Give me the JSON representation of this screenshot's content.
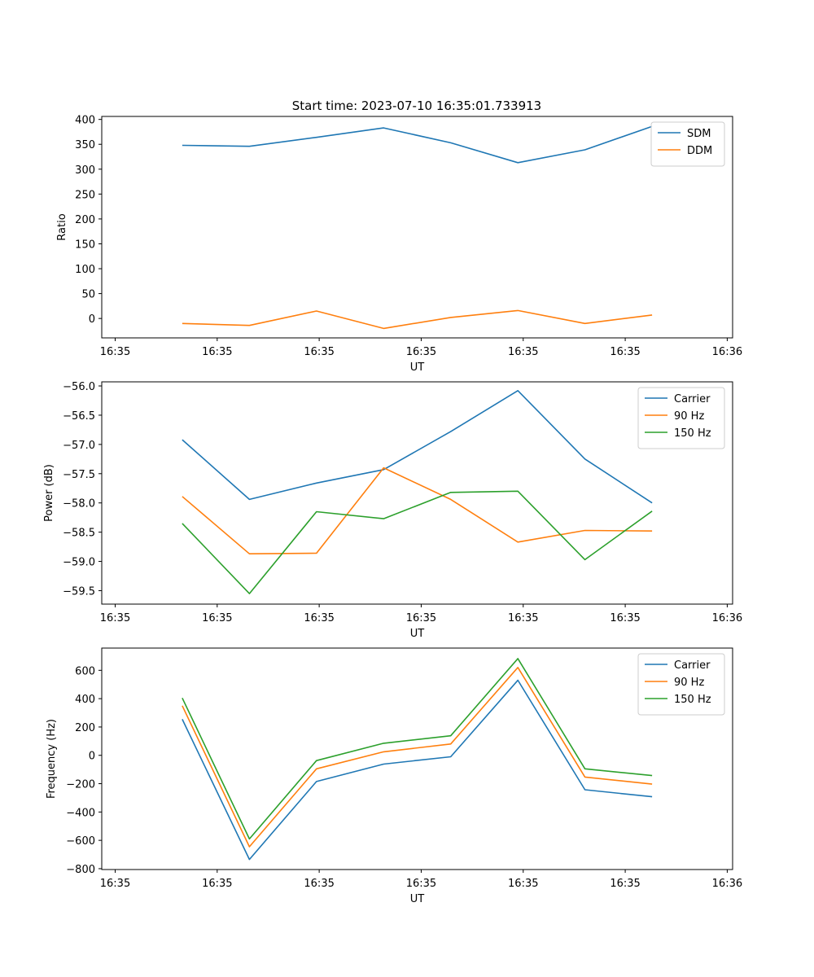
{
  "figure_title": "Start time: 2023-07-10 16:35:01.733913",
  "colors": {
    "blue": "#1f77b4",
    "orange": "#ff7f0e",
    "green": "#2ca02c"
  },
  "chart_data": [
    {
      "type": "line",
      "title": "Start time: 2023-07-10 16:35:01.733913",
      "xlabel": "UT",
      "ylabel": "Ratio",
      "x": [
        0.5,
        1.0,
        1.5,
        2.0,
        2.5,
        3.0,
        3.5,
        4.0
      ],
      "xlim": [
        -0.1,
        4.6
      ],
      "xticks": [
        0.0,
        0.76,
        1.52,
        2.28,
        3.04,
        3.8,
        4.56
      ],
      "xtick_labels": [
        "16:35",
        "16:35",
        "16:35",
        "16:35",
        "16:35",
        "16:35",
        "16:36"
      ],
      "ylim": [
        -39,
        406
      ],
      "yticks": [
        0,
        50,
        100,
        150,
        200,
        250,
        300,
        350,
        400
      ],
      "ytick_labels": [
        "0",
        "50",
        "100",
        "150",
        "200",
        "250",
        "300",
        "350",
        "400"
      ],
      "legend_position": "top-right",
      "series": [
        {
          "name": "SDM",
          "color": "#1f77b4",
          "values": [
            348,
            346,
            364,
            383,
            353,
            313,
            339,
            386
          ]
        },
        {
          "name": "DDM",
          "color": "#ff7f0e",
          "values": [
            -10,
            -14,
            15,
            -20,
            2,
            16,
            -10,
            7
          ]
        }
      ]
    },
    {
      "type": "line",
      "title": "",
      "xlabel": "UT",
      "ylabel": "Power (dB)",
      "x": [
        0.5,
        1.0,
        1.5,
        2.0,
        2.5,
        3.0,
        3.5,
        4.0
      ],
      "xlim": [
        -0.1,
        4.6
      ],
      "xticks": [
        0.0,
        0.76,
        1.52,
        2.28,
        3.04,
        3.8,
        4.56
      ],
      "xtick_labels": [
        "16:35",
        "16:35",
        "16:35",
        "16:35",
        "16:35",
        "16:35",
        "16:36"
      ],
      "ylim": [
        -59.73,
        -55.93
      ],
      "yticks": [
        -59.5,
        -59.0,
        -58.5,
        -58.0,
        -57.5,
        -57.0,
        -56.5,
        -56.0
      ],
      "ytick_labels": [
        "−59.5",
        "−59.0",
        "−58.5",
        "−58.0",
        "−57.5",
        "−57.0",
        "−56.5",
        "−56.0"
      ],
      "legend_position": "top-right",
      "series": [
        {
          "name": "Carrier",
          "color": "#1f77b4",
          "values": [
            -56.92,
            -57.94,
            -57.66,
            -57.43,
            -56.78,
            -56.08,
            -57.25,
            -58.0
          ]
        },
        {
          "name": "90 Hz",
          "color": "#ff7f0e",
          "values": [
            -57.89,
            -58.87,
            -58.86,
            -57.4,
            -57.94,
            -58.67,
            -58.47,
            -58.48
          ]
        },
        {
          "name": "150 Hz",
          "color": "#2ca02c",
          "values": [
            -58.35,
            -59.55,
            -58.15,
            -58.27,
            -57.82,
            -57.8,
            -58.97,
            -58.14
          ]
        }
      ]
    },
    {
      "type": "line",
      "title": "",
      "xlabel": "UT",
      "ylabel": "Frequency (Hz)",
      "x": [
        0.5,
        1.0,
        1.5,
        2.0,
        2.5,
        3.0,
        3.5,
        4.0
      ],
      "xlim": [
        -0.1,
        4.6
      ],
      "xticks": [
        0.0,
        0.76,
        1.52,
        2.28,
        3.04,
        3.8,
        4.56
      ],
      "xtick_labels": [
        "16:35",
        "16:35",
        "16:35",
        "16:35",
        "16:35",
        "16:35",
        "16:36"
      ],
      "ylim": [
        -806,
        757
      ],
      "yticks": [
        -800,
        -600,
        -400,
        -200,
        0,
        200,
        400,
        600
      ],
      "ytick_labels": [
        "−800",
        "−600",
        "−400",
        "−200",
        "0",
        "200",
        "400",
        "600"
      ],
      "legend_position": "top-right",
      "series": [
        {
          "name": "Carrier",
          "color": "#1f77b4",
          "values": [
            255,
            -735,
            -185,
            -62,
            -10,
            530,
            -243,
            -292
          ]
        },
        {
          "name": "90 Hz",
          "color": "#ff7f0e",
          "values": [
            350,
            -645,
            -95,
            25,
            80,
            620,
            -153,
            -203
          ]
        },
        {
          "name": "150 Hz",
          "color": "#2ca02c",
          "values": [
            405,
            -590,
            -37,
            85,
            138,
            683,
            -95,
            -143
          ]
        }
      ]
    }
  ]
}
